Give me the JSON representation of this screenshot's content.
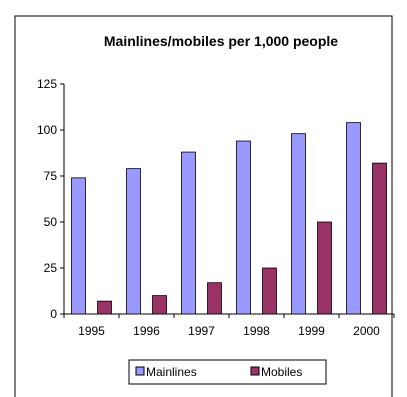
{
  "chart_data": {
    "type": "bar",
    "title": "Mainlines/mobiles per 1,000 people",
    "categories": [
      "1995",
      "1996",
      "1997",
      "1998",
      "1999",
      "2000"
    ],
    "series": [
      {
        "name": "Mainlines",
        "values": [
          74,
          79,
          88,
          94,
          98,
          104
        ],
        "color": "#9999ff"
      },
      {
        "name": "Mobiles",
        "values": [
          7,
          10,
          17,
          25,
          50,
          82
        ],
        "color": "#993366"
      }
    ],
    "ylim": [
      0,
      125
    ],
    "yticks": [
      "0",
      "25",
      "50",
      "75",
      "100",
      "125"
    ],
    "grid": false,
    "legend_position": "bottom"
  }
}
